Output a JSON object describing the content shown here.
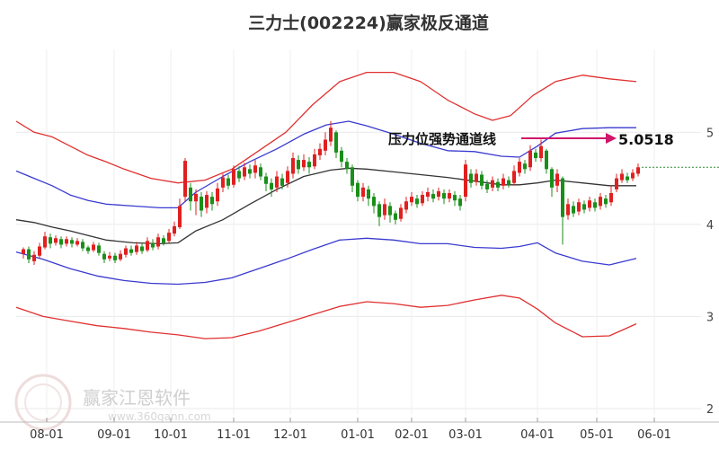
{
  "chart_data": {
    "type": "line",
    "title": "三力士(002224)赢家极反通道",
    "xlabel": "",
    "ylabel": "",
    "x_ticks": [
      "08-01",
      "09-01",
      "10-01",
      "11-01",
      "12-01",
      "01-01",
      "02-01",
      "03-01",
      "04-01",
      "05-01",
      "06-01"
    ],
    "y_ticks": [
      "5",
      "4",
      "3",
      "2"
    ],
    "ylim": [
      2,
      5.9
    ],
    "annotation": {
      "text": "压力位强势通道线",
      "value": "5.0518"
    },
    "series": [
      {
        "role": "outer-upper",
        "color": "#e03030",
        "values": [
          [
            0,
            5.12
          ],
          [
            20,
            5.0
          ],
          [
            40,
            4.95
          ],
          [
            60,
            4.85
          ],
          [
            80,
            4.75
          ],
          [
            100,
            4.68
          ],
          [
            120,
            4.6
          ],
          [
            150,
            4.5
          ],
          [
            180,
            4.45
          ],
          [
            210,
            4.48
          ],
          [
            240,
            4.6
          ],
          [
            270,
            4.8
          ],
          [
            300,
            5.0
          ],
          [
            330,
            5.3
          ],
          [
            360,
            5.55
          ],
          [
            390,
            5.65
          ],
          [
            420,
            5.65
          ],
          [
            450,
            5.55
          ],
          [
            480,
            5.35
          ],
          [
            510,
            5.2
          ],
          [
            530,
            5.13
          ],
          [
            550,
            5.18
          ],
          [
            575,
            5.4
          ],
          [
            600,
            5.55
          ],
          [
            630,
            5.62
          ],
          [
            660,
            5.58
          ],
          [
            690,
            5.55
          ]
        ]
      },
      {
        "role": "inner-upper",
        "color": "#3a3ad0",
        "values": [
          [
            0,
            4.58
          ],
          [
            20,
            4.5
          ],
          [
            40,
            4.42
          ],
          [
            60,
            4.32
          ],
          [
            80,
            4.26
          ],
          [
            100,
            4.22
          ],
          [
            130,
            4.2
          ],
          [
            160,
            4.18
          ],
          [
            180,
            4.18
          ],
          [
            200,
            4.35
          ],
          [
            230,
            4.52
          ],
          [
            260,
            4.68
          ],
          [
            290,
            4.82
          ],
          [
            320,
            4.98
          ],
          [
            345,
            5.08
          ],
          [
            370,
            5.12
          ],
          [
            390,
            5.07
          ],
          [
            420,
            4.98
          ],
          [
            450,
            4.88
          ],
          [
            480,
            4.8
          ],
          [
            510,
            4.79
          ],
          [
            540,
            4.74
          ],
          [
            560,
            4.73
          ],
          [
            580,
            4.85
          ],
          [
            600,
            4.99
          ],
          [
            630,
            5.04
          ],
          [
            660,
            5.05
          ],
          [
            690,
            5.05
          ]
        ]
      },
      {
        "role": "middle",
        "color": "#333333",
        "values": [
          [
            0,
            4.05
          ],
          [
            20,
            4.02
          ],
          [
            40,
            3.97
          ],
          [
            60,
            3.93
          ],
          [
            80,
            3.88
          ],
          [
            100,
            3.83
          ],
          [
            130,
            3.8
          ],
          [
            160,
            3.79
          ],
          [
            180,
            3.8
          ],
          [
            200,
            3.93
          ],
          [
            230,
            4.05
          ],
          [
            260,
            4.22
          ],
          [
            290,
            4.38
          ],
          [
            320,
            4.52
          ],
          [
            350,
            4.59
          ],
          [
            370,
            4.61
          ],
          [
            390,
            4.6
          ],
          [
            420,
            4.57
          ],
          [
            450,
            4.54
          ],
          [
            480,
            4.51
          ],
          [
            510,
            4.47
          ],
          [
            540,
            4.43
          ],
          [
            560,
            4.43
          ],
          [
            580,
            4.45
          ],
          [
            600,
            4.48
          ],
          [
            630,
            4.45
          ],
          [
            660,
            4.42
          ],
          [
            690,
            4.42
          ]
        ]
      },
      {
        "role": "inner-lower",
        "color": "#3a3ad0",
        "values": [
          [
            0,
            3.7
          ],
          [
            30,
            3.62
          ],
          [
            60,
            3.52
          ],
          [
            90,
            3.44
          ],
          [
            120,
            3.39
          ],
          [
            150,
            3.36
          ],
          [
            180,
            3.35
          ],
          [
            210,
            3.37
          ],
          [
            240,
            3.42
          ],
          [
            270,
            3.52
          ],
          [
            300,
            3.62
          ],
          [
            330,
            3.73
          ],
          [
            360,
            3.83
          ],
          [
            390,
            3.85
          ],
          [
            420,
            3.83
          ],
          [
            450,
            3.79
          ],
          [
            480,
            3.79
          ],
          [
            510,
            3.75
          ],
          [
            540,
            3.74
          ],
          [
            560,
            3.76
          ],
          [
            580,
            3.8
          ],
          [
            600,
            3.69
          ],
          [
            630,
            3.6
          ],
          [
            660,
            3.56
          ],
          [
            690,
            3.63
          ]
        ]
      },
      {
        "role": "outer-lower",
        "color": "#e03030",
        "values": [
          [
            0,
            3.1
          ],
          [
            30,
            3.0
          ],
          [
            60,
            2.95
          ],
          [
            90,
            2.9
          ],
          [
            120,
            2.87
          ],
          [
            150,
            2.83
          ],
          [
            180,
            2.8
          ],
          [
            210,
            2.76
          ],
          [
            240,
            2.77
          ],
          [
            270,
            2.84
          ],
          [
            300,
            2.93
          ],
          [
            330,
            3.02
          ],
          [
            360,
            3.11
          ],
          [
            390,
            3.16
          ],
          [
            420,
            3.14
          ],
          [
            450,
            3.1
          ],
          [
            480,
            3.12
          ],
          [
            510,
            3.18
          ],
          [
            540,
            3.23
          ],
          [
            560,
            3.2
          ],
          [
            580,
            3.08
          ],
          [
            600,
            2.93
          ],
          [
            630,
            2.78
          ],
          [
            660,
            2.79
          ],
          [
            690,
            2.92
          ]
        ]
      }
    ],
    "candles": [
      [
        8,
        3.68,
        3.73,
        3.75,
        3.63
      ],
      [
        14,
        3.73,
        3.62,
        3.76,
        3.58
      ],
      [
        20,
        3.6,
        3.67,
        3.71,
        3.56
      ],
      [
        26,
        3.66,
        3.76,
        3.8,
        3.63
      ],
      [
        32,
        3.75,
        3.87,
        3.92,
        3.73
      ],
      [
        38,
        3.86,
        3.79,
        3.9,
        3.74
      ],
      [
        44,
        3.8,
        3.85,
        3.88,
        3.77
      ],
      [
        50,
        3.84,
        3.78,
        3.87,
        3.74
      ],
      [
        56,
        3.79,
        3.84,
        3.87,
        3.76
      ],
      [
        62,
        3.83,
        3.79,
        3.86,
        3.75
      ],
      [
        68,
        3.78,
        3.82,
        3.85,
        3.76
      ],
      [
        74,
        3.81,
        3.74,
        3.84,
        3.71
      ],
      [
        80,
        3.75,
        3.71,
        3.77,
        3.68
      ],
      [
        86,
        3.72,
        3.78,
        3.81,
        3.7
      ],
      [
        92,
        3.77,
        3.69,
        3.8,
        3.66
      ],
      [
        98,
        3.68,
        3.62,
        3.71,
        3.58
      ],
      [
        104,
        3.63,
        3.66,
        3.7,
        3.6
      ],
      [
        110,
        3.66,
        3.61,
        3.69,
        3.58
      ],
      [
        116,
        3.62,
        3.68,
        3.72,
        3.6
      ],
      [
        122,
        3.67,
        3.74,
        3.77,
        3.64
      ],
      [
        128,
        3.73,
        3.69,
        3.77,
        3.66
      ],
      [
        134,
        3.7,
        3.77,
        3.81,
        3.67
      ],
      [
        140,
        3.76,
        3.71,
        3.79,
        3.68
      ],
      [
        146,
        3.72,
        3.82,
        3.86,
        3.7
      ],
      [
        152,
        3.8,
        3.75,
        3.84,
        3.72
      ],
      [
        158,
        3.76,
        3.86,
        3.9,
        3.73
      ],
      [
        164,
        3.85,
        3.8,
        3.88,
        3.77
      ],
      [
        170,
        3.82,
        3.91,
        3.95,
        3.8
      ],
      [
        176,
        3.9,
        3.98,
        4.03,
        3.87
      ],
      [
        182,
        3.97,
        4.2,
        4.28,
        3.95
      ],
      [
        188,
        4.3,
        4.69,
        4.72,
        4.25
      ],
      [
        194,
        4.4,
        4.25,
        4.45,
        4.15
      ],
      [
        200,
        4.25,
        4.33,
        4.38,
        4.1
      ],
      [
        206,
        4.3,
        4.15,
        4.35,
        4.08
      ],
      [
        212,
        4.18,
        4.32,
        4.36,
        4.12
      ],
      [
        218,
        4.3,
        4.22,
        4.35,
        4.15
      ],
      [
        224,
        4.25,
        4.39,
        4.45,
        4.2
      ],
      [
        230,
        4.4,
        4.51,
        4.55,
        4.35
      ],
      [
        236,
        4.5,
        4.42,
        4.54,
        4.38
      ],
      [
        242,
        4.43,
        4.6,
        4.64,
        4.4
      ],
      [
        248,
        4.58,
        4.5,
        4.63,
        4.46
      ],
      [
        254,
        4.52,
        4.62,
        4.67,
        4.48
      ],
      [
        260,
        4.6,
        4.55,
        4.65,
        4.5
      ],
      [
        266,
        4.56,
        4.64,
        4.7,
        4.5
      ],
      [
        272,
        4.62,
        4.52,
        4.66,
        4.48
      ],
      [
        278,
        4.52,
        4.44,
        4.56,
        4.36
      ],
      [
        284,
        4.45,
        4.38,
        4.5,
        4.3
      ],
      [
        290,
        4.4,
        4.52,
        4.58,
        4.35
      ],
      [
        296,
        4.5,
        4.42,
        4.55,
        4.38
      ],
      [
        302,
        4.45,
        4.58,
        4.63,
        4.4
      ],
      [
        308,
        4.55,
        4.72,
        4.78,
        4.5
      ],
      [
        314,
        4.7,
        4.6,
        4.75,
        4.55
      ],
      [
        320,
        4.62,
        4.7,
        4.76,
        4.58
      ],
      [
        326,
        4.68,
        4.62,
        4.73,
        4.55
      ],
      [
        332,
        4.63,
        4.76,
        4.82,
        4.6
      ],
      [
        338,
        4.75,
        4.82,
        4.88,
        4.7
      ],
      [
        344,
        4.8,
        4.92,
        5.0,
        4.75
      ],
      [
        350,
        4.9,
        5.05,
        5.12,
        4.85
      ],
      [
        356,
        5.0,
        4.78,
        5.02,
        4.72
      ],
      [
        362,
        4.8,
        4.68,
        4.84,
        4.62
      ],
      [
        368,
        4.68,
        4.6,
        4.72,
        4.55
      ],
      [
        374,
        4.62,
        4.42,
        4.65,
        4.35
      ],
      [
        380,
        4.45,
        4.3,
        4.48,
        4.25
      ],
      [
        386,
        4.3,
        4.4,
        4.45,
        4.25
      ],
      [
        392,
        4.38,
        4.28,
        4.42,
        4.2
      ],
      [
        398,
        4.3,
        4.2,
        4.34,
        4.12
      ],
      [
        404,
        4.22,
        4.08,
        4.25,
        3.98
      ],
      [
        410,
        4.1,
        4.22,
        4.28,
        4.05
      ],
      [
        416,
        4.2,
        4.1,
        4.24,
        4.02
      ],
      [
        422,
        4.12,
        4.05,
        4.15,
        4.0
      ],
      [
        428,
        4.06,
        4.18,
        4.22,
        4.03
      ],
      [
        434,
        4.16,
        4.25,
        4.3,
        4.12
      ],
      [
        440,
        4.24,
        4.3,
        4.35,
        4.2
      ],
      [
        446,
        4.28,
        4.22,
        4.32,
        4.18
      ],
      [
        452,
        4.23,
        4.32,
        4.36,
        4.2
      ],
      [
        458,
        4.3,
        4.35,
        4.4,
        4.25
      ],
      [
        464,
        4.33,
        4.28,
        4.38,
        4.24
      ],
      [
        470,
        4.3,
        4.36,
        4.4,
        4.26
      ],
      [
        476,
        4.34,
        4.28,
        4.38,
        4.22
      ],
      [
        482,
        4.28,
        4.34,
        4.38,
        4.24
      ],
      [
        488,
        4.32,
        4.26,
        4.36,
        4.2
      ],
      [
        494,
        4.28,
        4.2,
        4.32,
        4.15
      ],
      [
        500,
        4.3,
        4.65,
        4.7,
        4.25
      ],
      [
        506,
        4.55,
        4.45,
        4.6,
        4.4
      ],
      [
        512,
        4.46,
        4.55,
        4.6,
        4.42
      ],
      [
        518,
        4.54,
        4.42,
        4.58,
        4.38
      ],
      [
        524,
        4.44,
        4.38,
        4.48,
        4.34
      ],
      [
        530,
        4.4,
        4.48,
        4.52,
        4.36
      ],
      [
        536,
        4.46,
        4.4,
        4.5,
        4.36
      ],
      [
        542,
        4.42,
        4.5,
        4.55,
        4.38
      ],
      [
        548,
        4.48,
        4.43,
        4.52,
        4.4
      ],
      [
        554,
        4.45,
        4.58,
        4.64,
        4.42
      ],
      [
        560,
        4.56,
        4.68,
        4.72,
        4.52
      ],
      [
        566,
        4.66,
        4.6,
        4.7,
        4.55
      ],
      [
        572,
        4.62,
        4.8,
        4.86,
        4.58
      ],
      [
        578,
        4.78,
        4.72,
        4.82,
        4.68
      ],
      [
        584,
        4.72,
        4.85,
        4.92,
        4.68
      ],
      [
        590,
        4.8,
        4.6,
        4.82,
        4.55
      ],
      [
        596,
        4.6,
        4.4,
        4.62,
        4.3
      ],
      [
        602,
        4.42,
        4.55,
        4.6,
        4.35
      ],
      [
        608,
        4.5,
        4.08,
        4.52,
        3.78
      ],
      [
        614,
        4.1,
        4.22,
        4.28,
        4.05
      ],
      [
        620,
        4.2,
        4.12,
        4.25,
        4.08
      ],
      [
        626,
        4.14,
        4.24,
        4.28,
        4.1
      ],
      [
        632,
        4.22,
        4.16,
        4.26,
        4.12
      ],
      [
        638,
        4.18,
        4.26,
        4.3,
        4.14
      ],
      [
        644,
        4.24,
        4.18,
        4.28,
        4.14
      ],
      [
        650,
        4.2,
        4.3,
        4.34,
        4.16
      ],
      [
        656,
        4.28,
        4.22,
        4.32,
        4.18
      ],
      [
        662,
        4.24,
        4.34,
        4.42,
        4.2
      ],
      [
        668,
        4.38,
        4.5,
        4.55,
        4.35
      ],
      [
        674,
        4.48,
        4.55,
        4.6,
        4.45
      ],
      [
        680,
        4.52,
        4.48,
        4.56,
        4.45
      ],
      [
        686,
        4.5,
        4.56,
        4.6,
        4.47
      ],
      [
        692,
        4.55,
        4.62,
        4.66,
        4.52
      ]
    ],
    "last_price": 4.62
  },
  "watermark": {
    "brand": "赢家江恩软件",
    "url": "www.360gann.com"
  }
}
